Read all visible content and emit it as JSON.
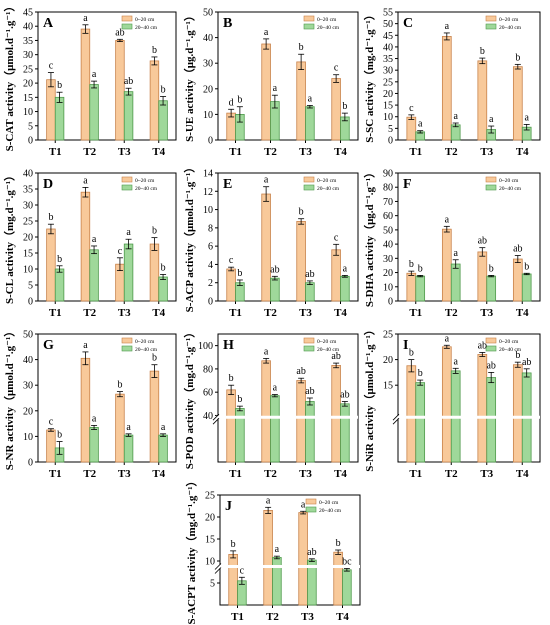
{
  "chart_data": [
    {
      "type": "bar",
      "panel_letter": "A",
      "ylabel": "S-CAT activity（μmol.d⁻¹.g⁻¹）",
      "ylim": [
        0,
        45
      ],
      "yticks": [
        0,
        5,
        10,
        15,
        20,
        25,
        30,
        35,
        40,
        45
      ],
      "categories": [
        "T1",
        "T2",
        "T3",
        "T4"
      ],
      "series": [
        {
          "name": "0~20 cm",
          "values": [
            21.2,
            39.0,
            35.0,
            27.8
          ],
          "errors": [
            2.5,
            1.5,
            0.4,
            1.4
          ],
          "letters": [
            "c",
            "a",
            "ab",
            "b"
          ]
        },
        {
          "name": "20~40 cm",
          "values": [
            15.0,
            19.5,
            17.0,
            13.8
          ],
          "errors": [
            1.8,
            1.2,
            1.2,
            1.5
          ],
          "letters": [
            "b",
            "a",
            "ab",
            "b"
          ]
        }
      ]
    },
    {
      "type": "bar",
      "panel_letter": "B",
      "ylabel": "S-UE activity（μg.d⁻¹.g⁻¹）",
      "ylim": [
        0,
        50
      ],
      "yticks": [
        0,
        10,
        20,
        30,
        40,
        50
      ],
      "categories": [
        "T1",
        "T2",
        "T3",
        "T4"
      ],
      "series": [
        {
          "name": "0~20 cm",
          "values": [
            10.5,
            37.5,
            30.5,
            24.0
          ],
          "errors": [
            1.5,
            2.0,
            3.0,
            1.5
          ],
          "letters": [
            "d",
            "a",
            "b",
            "c"
          ]
        },
        {
          "name": "20~40 cm",
          "values": [
            10.0,
            15.0,
            13.0,
            9.0
          ],
          "errors": [
            3.0,
            2.5,
            0.5,
            1.5
          ],
          "letters": [
            "b",
            "a",
            "a",
            "b"
          ]
        }
      ]
    },
    {
      "type": "bar",
      "panel_letter": "C",
      "ylabel": "S-SC activity（mg.d⁻¹.g⁻¹）",
      "ylim": [
        0,
        55
      ],
      "yticks": [
        0,
        5,
        10,
        15,
        20,
        25,
        30,
        35,
        40,
        45,
        50,
        55
      ],
      "categories": [
        "T1",
        "T2",
        "T3",
        "T4"
      ],
      "series": [
        {
          "name": "0~20 cm",
          "values": [
            9.8,
            44.5,
            34.0,
            31.5
          ],
          "errors": [
            1.0,
            1.5,
            1.2,
            1.0
          ],
          "letters": [
            "c",
            "a",
            "b",
            "b"
          ]
        },
        {
          "name": "20~40 cm",
          "values": [
            3.5,
            6.5,
            4.5,
            5.5
          ],
          "errors": [
            0.5,
            0.8,
            1.5,
            1.2
          ],
          "letters": [
            "a",
            "a",
            "a",
            "a"
          ]
        }
      ]
    },
    {
      "type": "bar",
      "panel_letter": "D",
      "ylabel": "S-CL activity（mg.d⁻¹.g⁻¹）",
      "ylim": [
        0,
        40
      ],
      "yticks": [
        0,
        5,
        10,
        15,
        20,
        25,
        30,
        35,
        40
      ],
      "categories": [
        "T1",
        "T2",
        "T3",
        "T4"
      ],
      "series": [
        {
          "name": "0~20 cm",
          "values": [
            22.5,
            34.0,
            11.5,
            17.8
          ],
          "errors": [
            1.5,
            1.5,
            2.0,
            2.0
          ],
          "letters": [
            "b",
            "a",
            "c",
            "b"
          ]
        },
        {
          "name": "20~40 cm",
          "values": [
            10.0,
            16.0,
            17.8,
            7.5
          ],
          "errors": [
            1.0,
            1.2,
            1.5,
            0.8
          ],
          "letters": [
            "b",
            "a",
            "a",
            "b"
          ]
        }
      ]
    },
    {
      "type": "bar",
      "panel_letter": "E",
      "ylabel": "S-ACP activity（μmol.d⁻¹.g⁻¹）",
      "ylim": [
        0,
        14
      ],
      "yticks": [
        0,
        2,
        4,
        6,
        8,
        10,
        12,
        14
      ],
      "categories": [
        "T1",
        "T2",
        "T3",
        "T4"
      ],
      "series": [
        {
          "name": "0~20 cm",
          "values": [
            3.5,
            11.7,
            8.7,
            5.6
          ],
          "errors": [
            0.2,
            0.8,
            0.3,
            0.6
          ],
          "letters": [
            "c",
            "a",
            "b",
            "c"
          ]
        },
        {
          "name": "20~40 cm",
          "values": [
            2.0,
            2.5,
            2.0,
            2.7
          ],
          "errors": [
            0.3,
            0.2,
            0.2,
            0.1
          ],
          "letters": [
            "b",
            "ab",
            "ab",
            "a"
          ]
        }
      ]
    },
    {
      "type": "bar",
      "panel_letter": "F",
      "ylabel": "S-DHA activity（μg.d⁻¹.g⁻¹）",
      "ylim": [
        0,
        90
      ],
      "yticks": [
        0,
        10,
        20,
        30,
        40,
        50,
        60,
        70,
        80,
        90
      ],
      "categories": [
        "T1",
        "T2",
        "T3",
        "T4"
      ],
      "series": [
        {
          "name": "0~20 cm",
          "values": [
            19.5,
            50.5,
            34.5,
            29.5
          ],
          "errors": [
            1.5,
            2.0,
            3.0,
            2.5
          ],
          "letters": [
            "b",
            "a",
            "ab",
            "ab"
          ]
        },
        {
          "name": "20~40 cm",
          "values": [
            17.5,
            26.0,
            17.5,
            19.0
          ],
          "errors": [
            0.5,
            3.0,
            0.5,
            0.5
          ],
          "letters": [
            "b",
            "a",
            "b",
            "b"
          ]
        }
      ]
    },
    {
      "type": "bar",
      "panel_letter": "G",
      "ylabel": "S-NR activity（μmol.d⁻¹.g⁻¹）",
      "ylim": [
        0,
        50
      ],
      "yticks": [
        0,
        10,
        20,
        30,
        40,
        50
      ],
      "categories": [
        "T1",
        "T2",
        "T3",
        "T4"
      ],
      "series": [
        {
          "name": "0~20 cm",
          "values": [
            12.5,
            40.5,
            26.5,
            35.5
          ],
          "errors": [
            0.5,
            2.5,
            1.0,
            2.5
          ],
          "letters": [
            "c",
            "a",
            "b",
            "b"
          ]
        },
        {
          "name": "20~40 cm",
          "values": [
            5.5,
            13.5,
            10.5,
            10.5
          ],
          "errors": [
            2.5,
            0.8,
            0.5,
            0.5
          ],
          "letters": [
            "b",
            "a",
            "a",
            "a"
          ]
        }
      ]
    },
    {
      "type": "bar",
      "panel_letter": "H",
      "ylabel": "S-POD activity（mg.d⁻¹.g⁻¹）",
      "ylim": [
        0,
        110
      ],
      "yticks": [
        40,
        60,
        80,
        100
      ],
      "broken_axis": true,
      "categories": [
        "T1",
        "T2",
        "T3",
        "T4"
      ],
      "series": [
        {
          "name": "0~20 cm",
          "values": [
            62,
            87,
            70,
            83
          ],
          "errors": [
            4,
            2,
            2,
            2
          ],
          "letters": [
            "b",
            "a",
            "ab",
            "ab"
          ]
        },
        {
          "name": "20~40 cm",
          "values": [
            46,
            57,
            52,
            50
          ],
          "errors": [
            2,
            1,
            3,
            2
          ],
          "letters": [
            "b",
            "a",
            "ab",
            "ab"
          ]
        }
      ]
    },
    {
      "type": "bar",
      "panel_letter": "I",
      "ylabel": "S-NiR activity（μmol.d⁻¹.g⁻¹）",
      "ylim": [
        0,
        25
      ],
      "yticks": [
        15,
        20,
        25
      ],
      "broken_axis": true,
      "categories": [
        "T1",
        "T2",
        "T3",
        "T4"
      ],
      "series": [
        {
          "name": "0~20 cm",
          "values": [
            18.8,
            22.5,
            21.0,
            19.0
          ],
          "errors": [
            1.2,
            0.3,
            0.4,
            0.5
          ],
          "letters": [
            "b",
            "a",
            "ab",
            "b"
          ]
        },
        {
          "name": "20~40 cm",
          "values": [
            15.5,
            17.8,
            16.5,
            17.4
          ],
          "errors": [
            0.5,
            0.5,
            1.0,
            0.8
          ],
          "letters": [
            "b",
            "a",
            "ab",
            "ab"
          ]
        }
      ]
    },
    {
      "type": "bar",
      "panel_letter": "J",
      "ylabel": "S-ACPT activity（mg.d⁻¹.g⁻¹）",
      "ylim": [
        0,
        25
      ],
      "yticks": [
        5,
        10,
        15,
        20,
        25
      ],
      "broken_axis": true,
      "categories": [
        "T1",
        "T2",
        "T3",
        "T4"
      ],
      "series": [
        {
          "name": "0~20 cm",
          "values": [
            11.5,
            21.5,
            21.0,
            12.0
          ],
          "errors": [
            0.8,
            0.7,
            0.3,
            0.5
          ],
          "letters": [
            "b",
            "a",
            "a",
            "b"
          ]
        },
        {
          "name": "20~40 cm",
          "values": [
            5.5,
            10.8,
            10.2,
            8.0
          ],
          "errors": [
            0.8,
            0.3,
            0.3,
            0.3
          ],
          "letters": [
            "c",
            "a",
            "ab",
            "bc"
          ]
        }
      ]
    }
  ],
  "colors": {
    "series1": "#f8c99a",
    "series1_edge": "#c8824a",
    "series2": "#9fd89a",
    "series2_edge": "#4f9a4c",
    "text": "#000000"
  }
}
